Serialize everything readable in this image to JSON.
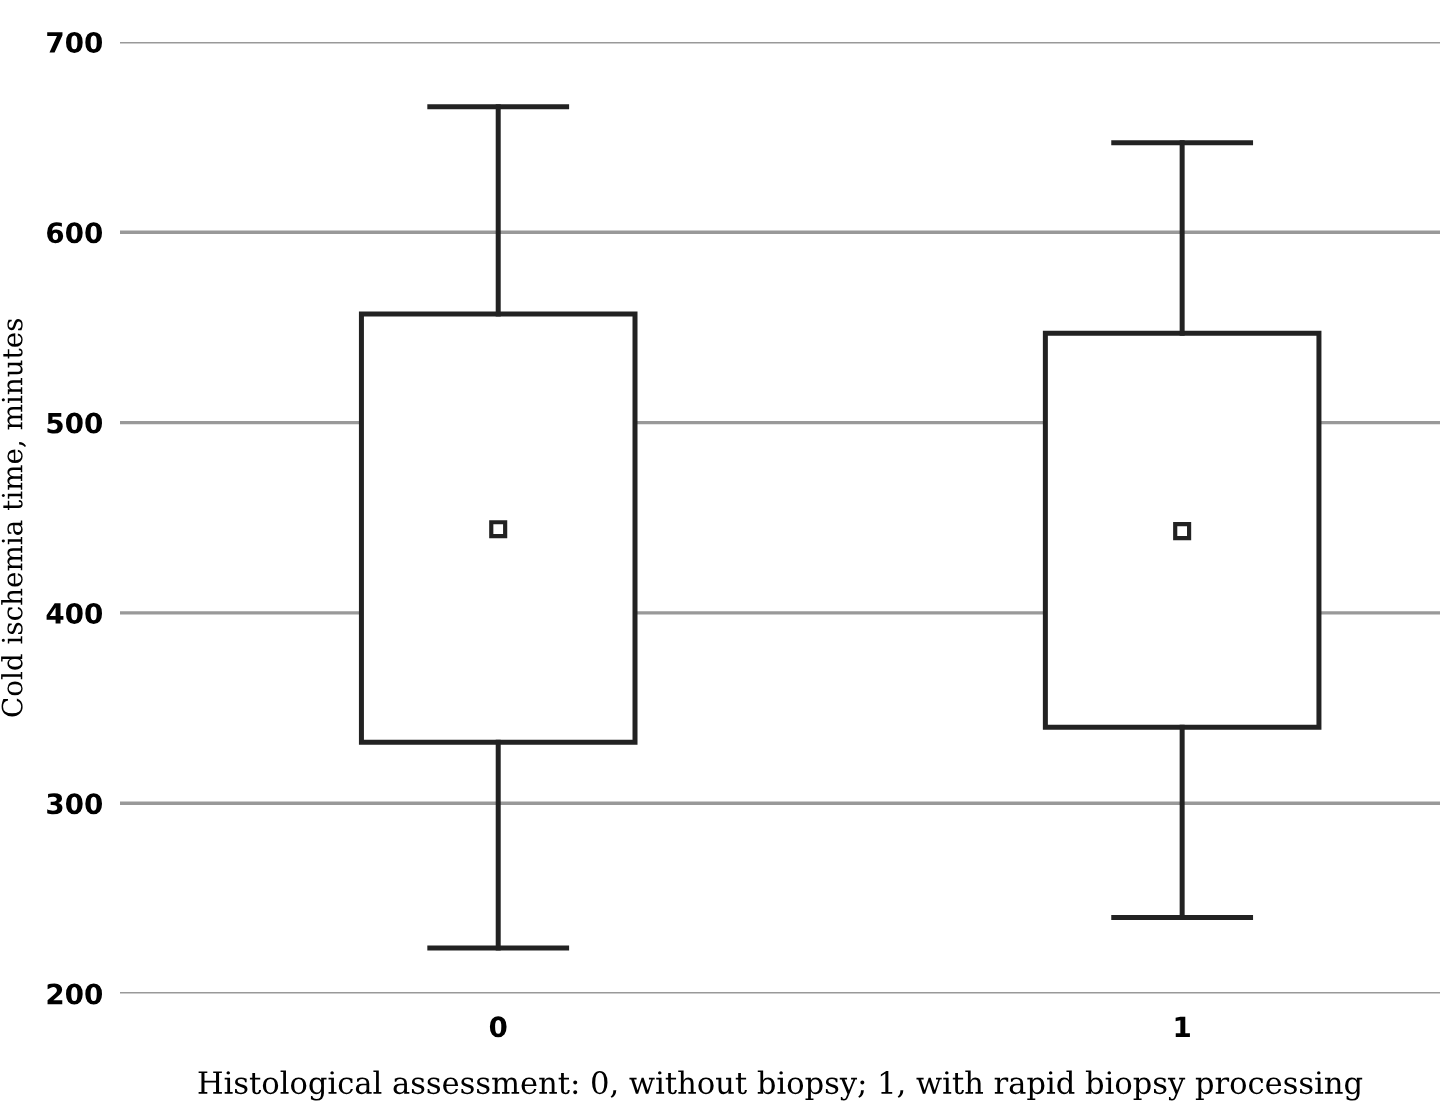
{
  "chart_data": {
    "type": "box",
    "categories": [
      "0",
      "1"
    ],
    "boxes": [
      {
        "low": 224,
        "q1": 332,
        "q3": 557,
        "high": 666,
        "mean": 444
      },
      {
        "low": 240,
        "q1": 340,
        "q3": 547,
        "high": 647,
        "mean": 443
      }
    ],
    "color": "#222222",
    "marker": "square",
    "ylim": [
      200,
      700
    ],
    "yticks": [
      200,
      300,
      400,
      500,
      600,
      700
    ],
    "grid": "y",
    "xlabel": "Histological assessment: 0, without biopsy; 1, with rapid biopsy processing",
    "ylabel": "Cold ischemia time, minutes"
  }
}
